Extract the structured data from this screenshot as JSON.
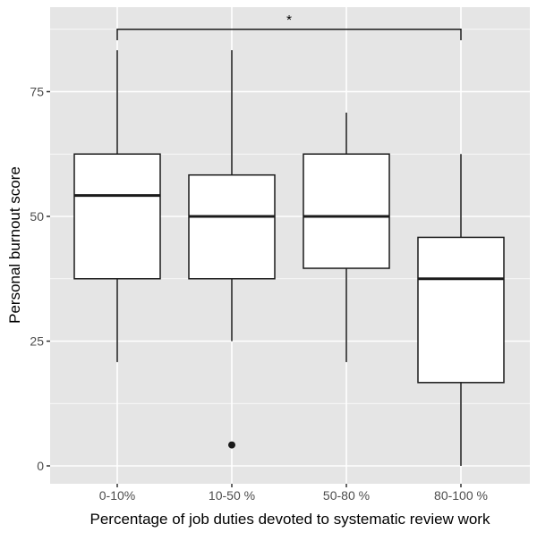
{
  "chart_data": {
    "type": "boxplot",
    "title": "",
    "xlabel": "Percentage of job duties devoted to systematic review work",
    "ylabel": "Personal burnout score",
    "categories": [
      "0-10%",
      "10-50 %",
      "50-80 %",
      "80-100 %"
    ],
    "boxes": [
      {
        "whisker_low": 20.8,
        "q1": 37.5,
        "median": 54.2,
        "q3": 62.5,
        "whisker_high": 83.3,
        "outliers": []
      },
      {
        "whisker_low": 25.0,
        "q1": 37.5,
        "median": 50.0,
        "q3": 58.3,
        "whisker_high": 83.3,
        "outliers": [
          4.2
        ]
      },
      {
        "whisker_low": 20.8,
        "q1": 39.6,
        "median": 50.0,
        "q3": 62.5,
        "whisker_high": 70.8,
        "outliers": []
      },
      {
        "whisker_low": 0.0,
        "q1": 16.7,
        "median": 37.5,
        "q3": 45.8,
        "whisker_high": 62.5,
        "outliers": []
      }
    ],
    "yticks": [
      0,
      25,
      50,
      75
    ],
    "ytick_labels": [
      "0",
      "25",
      "50",
      "75"
    ],
    "ylim": [
      -3.5,
      93
    ],
    "grid": true,
    "significance": {
      "from": "0-10%",
      "to": "80-100 %",
      "label": "*",
      "y": 87.5
    },
    "colors": {
      "panel": "#e5e5e5",
      "grid": "#ffffff",
      "box_fill": "#ffffff",
      "line": "#1a1a1a"
    }
  }
}
